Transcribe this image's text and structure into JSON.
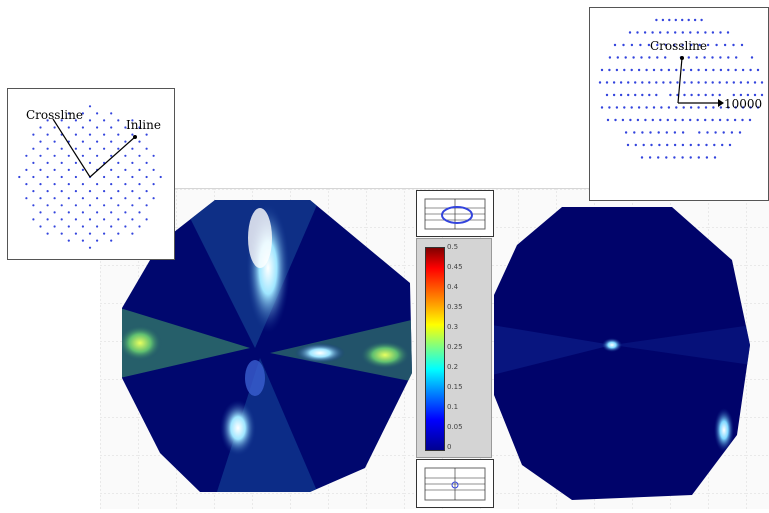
{
  "left_inset": {
    "crossline_label": "Crossline",
    "inline_label": "Inline",
    "dot_color": "#3344dd"
  },
  "right_inset": {
    "crossline_label": "Crossline",
    "inline_label": "10000",
    "dot_color": "#3344dd"
  },
  "colorbar": {
    "tick_labels": [
      "0.5",
      "0.45",
      "0.4",
      "0.35",
      "0.3",
      "0.25",
      "0.2",
      "0.15",
      "0.1",
      "0.05",
      "0"
    ],
    "colors": [
      "#800000",
      "#ff0000",
      "#ffa000",
      "#ffff00",
      "#70ff90",
      "#00ffff",
      "#0080ff",
      "#0000ff",
      "#000090"
    ]
  },
  "panel_colors": {
    "background": "#00006a",
    "grid": "#d8d8d8"
  }
}
